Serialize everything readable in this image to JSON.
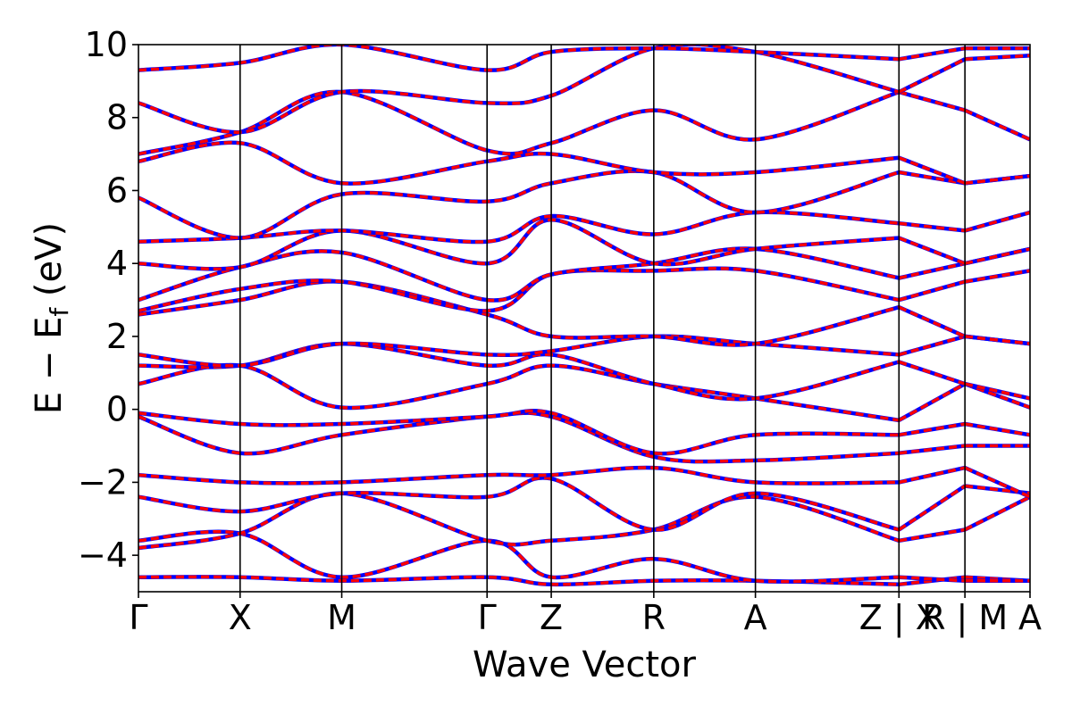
{
  "chart_data": {
    "type": "line",
    "xlabel": "Wave Vector",
    "ylabel": "E − E_f (eV)",
    "ylabel_main": "E − E",
    "ylabel_sub": "f",
    "ylabel_unit": " (eV)",
    "ylim": [
      -5,
      10
    ],
    "yticks": [
      -4,
      -2,
      0,
      2,
      4,
      6,
      8,
      10
    ],
    "ytick_labels": [
      "−4",
      "−2",
      "0",
      "2",
      "4",
      "6",
      "8",
      "10"
    ],
    "grid": false,
    "legend": "none",
    "xlim": [
      0,
      1
    ],
    "kpath_ticks": [
      {
        "pos": 0.0,
        "label": "Γ"
      },
      {
        "pos": 0.114,
        "label": "X"
      },
      {
        "pos": 0.228,
        "label": "M"
      },
      {
        "pos": 0.391,
        "label": "Γ"
      },
      {
        "pos": 0.463,
        "label": "Z"
      },
      {
        "pos": 0.578,
        "label": "R"
      },
      {
        "pos": 0.692,
        "label": "A"
      },
      {
        "pos": 0.853,
        "label": "Z | X"
      },
      {
        "pos": 0.927,
        "label": "R | M"
      },
      {
        "pos": 1.0,
        "label": "A"
      }
    ],
    "segment_breaks": [
      0.853,
      0.927
    ],
    "series_styles": [
      {
        "color": "#0000ff",
        "dash": "solid",
        "width": 4.5
      },
      {
        "color": "#ff0000",
        "dash": "dashed",
        "width": 3.5
      }
    ],
    "bands": [
      [
        -4.6,
        -4.6,
        -4.7,
        -4.6,
        -4.8,
        -4.7,
        -4.7,
        -4.8,
        -4.6,
        -4.7
      ],
      [
        -3.6,
        -3.4,
        -4.6,
        -3.6,
        -4.6,
        -4.1,
        -4.7,
        -4.6,
        -4.7,
        -4.7
      ],
      [
        -3.8,
        -3.4,
        -2.3,
        -3.6,
        -3.6,
        -3.3,
        -2.4,
        -3.6,
        -3.3,
        -2.4
      ],
      [
        -2.4,
        -2.8,
        -2.3,
        -2.4,
        -1.9,
        -3.3,
        -2.3,
        -3.3,
        -2.1,
        -2.3
      ],
      [
        -1.8,
        -2.0,
        -2.0,
        -1.8,
        -1.8,
        -1.6,
        -2.0,
        -2.0,
        -1.6,
        -2.4
      ],
      [
        -0.2,
        -1.2,
        -0.7,
        -0.2,
        -0.2,
        -1.3,
        -1.4,
        -1.2,
        -1.0,
        -1.0
      ],
      [
        -0.1,
        -0.4,
        -0.4,
        -0.2,
        -0.1,
        -1.2,
        -0.7,
        -0.7,
        -0.4,
        -0.7
      ],
      [
        0.7,
        1.2,
        0.05,
        0.7,
        1.2,
        0.7,
        0.3,
        -0.3,
        0.7,
        0.05
      ],
      [
        1.2,
        1.2,
        1.8,
        1.2,
        1.5,
        0.7,
        0.3,
        1.3,
        0.7,
        0.3
      ],
      [
        1.5,
        1.2,
        1.8,
        1.5,
        1.6,
        2.0,
        1.8,
        1.5,
        2.0,
        1.8
      ],
      [
        2.6,
        3.0,
        3.5,
        2.6,
        2.0,
        2.0,
        1.8,
        2.8,
        2.0,
        1.8
      ],
      [
        2.7,
        3.3,
        3.5,
        2.7,
        3.7,
        3.8,
        3.8,
        3.0,
        3.5,
        3.8
      ],
      [
        3.0,
        3.9,
        4.3,
        3.0,
        3.7,
        4.0,
        4.4,
        3.6,
        4.0,
        4.4
      ],
      [
        4.0,
        3.9,
        4.9,
        4.0,
        5.2,
        4.0,
        4.4,
        4.7,
        4.0,
        4.4
      ],
      [
        4.6,
        4.7,
        4.9,
        4.6,
        5.3,
        4.8,
        5.4,
        5.1,
        4.9,
        5.4
      ],
      [
        5.8,
        4.7,
        5.9,
        5.7,
        6.2,
        6.5,
        5.4,
        6.5,
        6.2,
        6.4
      ],
      [
        6.8,
        7.3,
        6.2,
        6.8,
        7.0,
        6.5,
        6.5,
        6.9,
        6.2,
        6.4
      ],
      [
        7.0,
        7.6,
        8.7,
        7.1,
        7.3,
        8.2,
        7.4,
        8.7,
        8.2,
        7.4
      ],
      [
        8.4,
        7.6,
        8.7,
        8.4,
        8.6,
        9.9,
        9.8,
        8.7,
        9.6,
        9.7
      ],
      [
        9.3,
        9.5,
        10.0,
        9.3,
        9.8,
        9.9,
        9.8,
        9.6,
        9.9,
        9.9
      ]
    ]
  }
}
